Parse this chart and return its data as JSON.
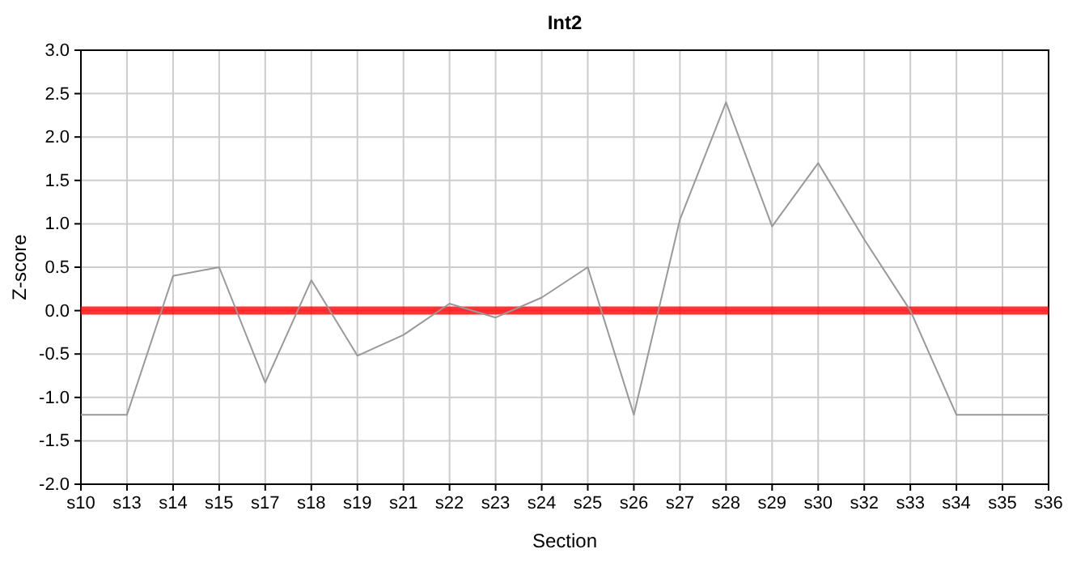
{
  "chart_data": {
    "type": "line",
    "title": "Int2",
    "xlabel": "Section",
    "ylabel": "Z-score",
    "categories": [
      "s10",
      "s13",
      "s14",
      "s15",
      "s17",
      "s18",
      "s19",
      "s21",
      "s22",
      "s23",
      "s24",
      "s25",
      "s26",
      "s27",
      "s28",
      "s29",
      "s30",
      "s32",
      "s33",
      "s34",
      "s35",
      "s36"
    ],
    "series": [
      {
        "color": "#999999",
        "values": [
          -1.2,
          -1.2,
          0.4,
          0.5,
          -0.83,
          0.35,
          -0.52,
          -0.28,
          0.08,
          -0.08,
          0.15,
          0.5,
          -1.2,
          1.05,
          2.4,
          0.97,
          1.7,
          0.82,
          0.0,
          -1.2,
          -1.2,
          -1.2
        ]
      }
    ],
    "ylim": [
      -2,
      3
    ],
    "yticks": [
      {
        "value": -2,
        "label": "-2.0"
      },
      {
        "value": -1.5,
        "label": "-1.5"
      },
      {
        "value": -1,
        "label": "-1.0"
      },
      {
        "value": -0.5,
        "label": "-0.5"
      },
      {
        "value": 0,
        "label": "0.0"
      },
      {
        "value": 0.5,
        "label": "0.5"
      },
      {
        "value": 1,
        "label": "1.0"
      },
      {
        "value": 1.5,
        "label": "1.5"
      },
      {
        "value": 2,
        "label": "2.0"
      },
      {
        "value": 2.5,
        "label": "2.5"
      },
      {
        "value": 3,
        "label": "3.0"
      }
    ],
    "ref_lines": [
      {
        "axis": "y",
        "value": 0,
        "label": null,
        "color": "#ff0000"
      }
    ],
    "grid": true,
    "marker": "none",
    "line_style": "solid"
  }
}
